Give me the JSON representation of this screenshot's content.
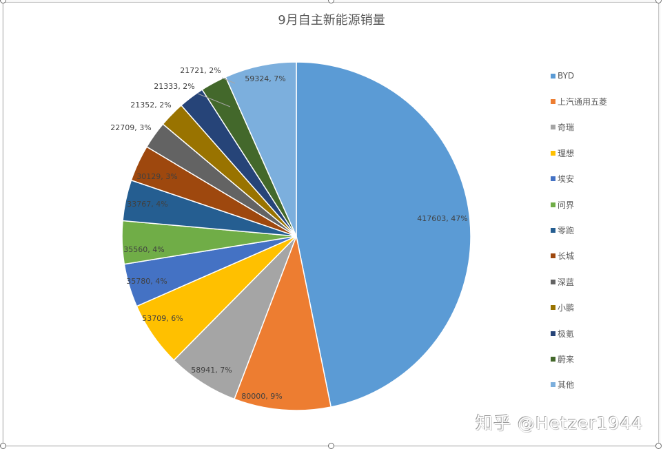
{
  "chart_data": {
    "type": "pie",
    "title": "9月自主新能源销量",
    "categories": [
      "BYD",
      "上汽通用五菱",
      "奇瑞",
      "理想",
      "埃安",
      "问界",
      "零跑",
      "长城",
      "深蓝",
      "小鹏",
      "极氪",
      "蔚来",
      "其他"
    ],
    "values": [
      417603,
      80000,
      58941,
      53709,
      35780,
      35560,
      33767,
      30129,
      22709,
      21352,
      21333,
      21721,
      59324
    ],
    "percent_labels": [
      "47%",
      "9%",
      "7%",
      "6%",
      "4%",
      "4%",
      "4%",
      "3%",
      "3%",
      "2%",
      "2%",
      "2%",
      "7%"
    ],
    "data_labels": [
      "417603, 47%",
      "80000, 9%",
      "58941, 7%",
      "53709, 6%",
      "35780, 4%",
      "35560, 4%",
      "33767, 4%",
      "30129, 3%",
      "22709, 3%",
      "21352, 2%",
      "21333, 2%",
      "21721, 2%",
      "59324, 7%"
    ],
    "colors": [
      "#5b9bd5",
      "#ed7d31",
      "#a5a5a5",
      "#ffc000",
      "#4472c4",
      "#70ad47",
      "#255e91",
      "#9e480e",
      "#636363",
      "#997300",
      "#264478",
      "#43682b",
      "#7cafdd"
    ],
    "start_angle": "12 o'clock, clockwise",
    "legend_position": "right"
  },
  "chart": {
    "title": "9月自主新能源销量",
    "legend": [
      {
        "label": "BYD",
        "color": "#5b9bd5"
      },
      {
        "label": "上汽通用五菱",
        "color": "#ed7d31"
      },
      {
        "label": "奇瑞",
        "color": "#a5a5a5"
      },
      {
        "label": "理想",
        "color": "#ffc000"
      },
      {
        "label": "埃安",
        "color": "#4472c4"
      },
      {
        "label": "问界",
        "color": "#70ad47"
      },
      {
        "label": "零跑",
        "color": "#255e91"
      },
      {
        "label": "长城",
        "color": "#9e480e"
      },
      {
        "label": "深蓝",
        "color": "#636363"
      },
      {
        "label": "小鹏",
        "color": "#997300"
      },
      {
        "label": "极氪",
        "color": "#264478"
      },
      {
        "label": "蔚来",
        "color": "#43682b"
      },
      {
        "label": "其他",
        "color": "#7cafdd"
      }
    ]
  },
  "watermark": "知乎 @Hetzer1944"
}
